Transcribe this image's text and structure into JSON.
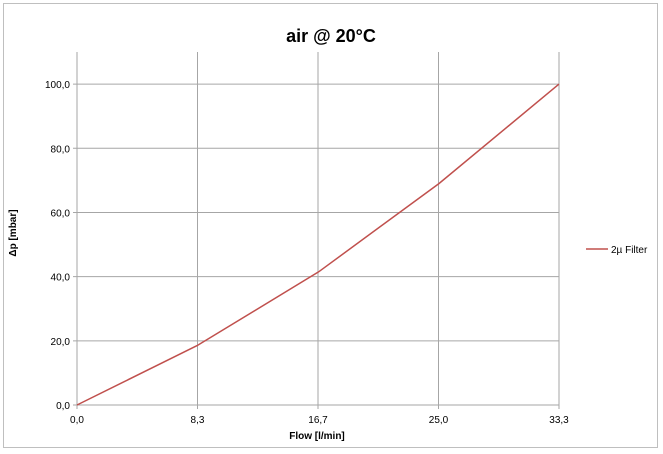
{
  "chart_data": {
    "type": "line",
    "title": "air @ 20°C",
    "xlabel": "Flow [l/min]",
    "ylabel": "Δp [mbar]",
    "xlim": [
      0,
      33.3
    ],
    "ylim": [
      0,
      110
    ],
    "x_ticks": [
      "0,0",
      "8,3",
      "16,7",
      "25,0",
      "33,3"
    ],
    "y_ticks": [
      "0,0",
      "20,0",
      "40,0",
      "60,0",
      "80,0",
      "100,0"
    ],
    "grid": true,
    "legend_position": "right",
    "series": [
      {
        "name": "2µ Filter",
        "color": "#c0504d",
        "x": [
          0,
          8.3,
          16.7,
          25.0,
          33.3
        ],
        "y": [
          0,
          18.5,
          41.5,
          69.0,
          100.0
        ]
      }
    ]
  }
}
